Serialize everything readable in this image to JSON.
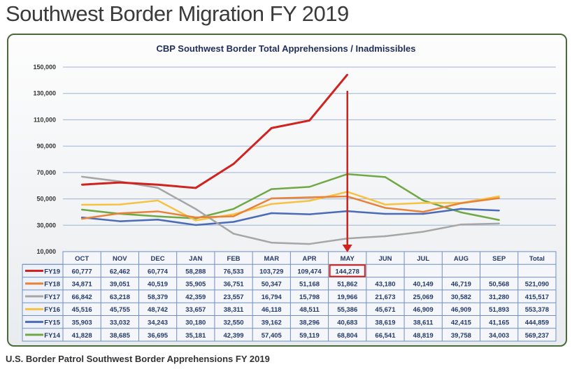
{
  "page_title": "Southwest Border Migration FY 2019",
  "caption": "U.S. Border Patrol Southwest Border Apprehensions FY 2019",
  "chart_data": {
    "type": "line",
    "title": "CBP Southwest Border Total Apprehensions / Inadmissibles",
    "categories": [
      "OCT",
      "NOV",
      "DEC",
      "JAN",
      "FEB",
      "MAR",
      "APR",
      "MAY",
      "JUN",
      "JUL",
      "AUG",
      "SEP"
    ],
    "total_label": "Total",
    "ylim": [
      10000,
      150000
    ],
    "yticks": [
      "10,000",
      "30,000",
      "50,000",
      "70,000",
      "90,000",
      "110,000",
      "130,000",
      "150,000"
    ],
    "ytick_values": [
      10000,
      30000,
      50000,
      70000,
      90000,
      110000,
      130000,
      150000
    ],
    "grid": true,
    "highlight": {
      "series": "FY19",
      "month": "MAY",
      "value": "144,278"
    },
    "series": [
      {
        "name": "FY19",
        "color": "#d0221f",
        "values": [
          60777,
          62462,
          60774,
          58288,
          76533,
          103729,
          109474,
          144278,
          null,
          null,
          null,
          null
        ],
        "labels": [
          "60,777",
          "62,462",
          "60,774",
          "58,288",
          "76,533",
          "103,729",
          "109,474",
          "144,278",
          "",
          "",
          "",
          ""
        ],
        "total": ""
      },
      {
        "name": "FY18",
        "color": "#e8823a",
        "values": [
          34871,
          39051,
          40519,
          35905,
          36751,
          50347,
          51168,
          51862,
          43180,
          40149,
          46719,
          50568
        ],
        "labels": [
          "34,871",
          "39,051",
          "40,519",
          "35,905",
          "36,751",
          "50,347",
          "51,168",
          "51,862",
          "43,180",
          "40,149",
          "46,719",
          "50,568"
        ],
        "total": "521,090"
      },
      {
        "name": "FY17",
        "color": "#a6a6a6",
        "values": [
          66842,
          63218,
          58379,
          42359,
          23557,
          16794,
          15798,
          19966,
          21673,
          25069,
          30582,
          31280
        ],
        "labels": [
          "66,842",
          "63,218",
          "58,379",
          "42,359",
          "23,557",
          "16,794",
          "15,798",
          "19,966",
          "21,673",
          "25,069",
          "30,582",
          "31,280"
        ],
        "total": "415,517"
      },
      {
        "name": "FY16",
        "color": "#f5c242",
        "values": [
          45516,
          45755,
          48742,
          33657,
          38311,
          46118,
          48511,
          55386,
          45671,
          46909,
          46909,
          51893
        ],
        "labels": [
          "45,516",
          "45,755",
          "48,742",
          "33,657",
          "38,311",
          "46,118",
          "48,511",
          "55,386",
          "45,671",
          "46,909",
          "46,909",
          "51,893"
        ],
        "total": "553,378"
      },
      {
        "name": "FY15",
        "color": "#4a6bb8",
        "values": [
          35903,
          33032,
          34243,
          30180,
          32550,
          39162,
          38296,
          40683,
          38619,
          38611,
          42415,
          41165
        ],
        "labels": [
          "35,903",
          "33,032",
          "34,243",
          "30,180",
          "32,550",
          "39,162",
          "38,296",
          "40,683",
          "38,619",
          "38,611",
          "42,415",
          "41,165"
        ],
        "total": "444,859"
      },
      {
        "name": "FY14",
        "color": "#70a845",
        "values": [
          41828,
          38685,
          36695,
          35181,
          42399,
          57405,
          59119,
          68804,
          66541,
          48819,
          39758,
          34003
        ],
        "labels": [
          "41,828",
          "38,685",
          "36,695",
          "35,181",
          "42,399",
          "57,405",
          "59,119",
          "68,804",
          "66,541",
          "48,819",
          "39,758",
          "34,003"
        ],
        "total": "569,237"
      }
    ]
  }
}
